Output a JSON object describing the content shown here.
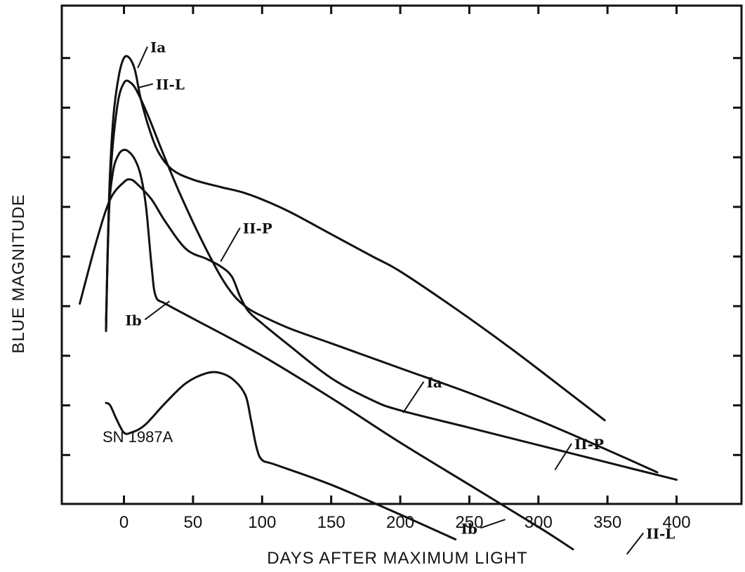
{
  "chart_data": {
    "type": "line",
    "title": "",
    "xlabel": "DAYS AFTER MAXIMUM LIGHT",
    "ylabel": "BLUE MAGNITUDE",
    "xlim": [
      -45,
      447
    ],
    "ylim": [
      0,
      10
    ],
    "x_ticks": [
      0,
      50,
      100,
      150,
      200,
      250,
      300,
      350,
      400
    ],
    "x_tick_labels": [
      "0",
      "50",
      "100",
      "150",
      "200",
      "250",
      "300",
      "350",
      "400"
    ],
    "y_ticks": [
      1,
      2,
      3,
      4,
      5,
      6,
      7,
      8,
      9
    ],
    "y_tick_labels_shown": false,
    "y_inverted": true,
    "grid": false,
    "annotation": "SN 1987A",
    "series": [
      {
        "name": "Ia",
        "color": "#111111",
        "x": [
          -13,
          -11,
          -8,
          -4,
          0,
          4,
          8,
          12,
          18,
          25,
          35,
          50,
          70,
          85,
          100,
          120,
          150,
          180,
          200,
          240,
          280,
          320,
          348
        ],
        "y": [
          6.5,
          4.0,
          2.3,
          1.4,
          1.0,
          1.0,
          1.25,
          1.8,
          2.4,
          2.9,
          3.25,
          3.45,
          3.6,
          3.7,
          3.85,
          4.1,
          4.55,
          5.0,
          5.3,
          6.05,
          6.85,
          7.7,
          8.3
        ]
      },
      {
        "name": "II-L",
        "color": "#111111",
        "x": [
          -13,
          -10,
          -5,
          0,
          5,
          10,
          18,
          28,
          40,
          55,
          70,
          80,
          90,
          100,
          120,
          150,
          200,
          250,
          300,
          350,
          386
        ],
        "y": [
          6.3,
          3.5,
          2.0,
          1.5,
          1.5,
          1.7,
          2.2,
          2.9,
          3.7,
          4.6,
          5.4,
          5.8,
          6.05,
          6.2,
          6.45,
          6.75,
          7.25,
          7.75,
          8.3,
          8.9,
          9.35
        ]
      },
      {
        "name": "II-P",
        "color": "#111111",
        "x": [
          -32,
          -20,
          -10,
          0,
          5,
          10,
          20,
          30,
          45,
          60,
          70,
          78,
          84,
          90,
          100,
          120,
          150,
          180,
          200,
          250,
          300,
          350,
          400
        ],
        "y": [
          5.95,
          4.7,
          3.85,
          3.5,
          3.45,
          3.55,
          3.85,
          4.3,
          4.85,
          5.05,
          5.2,
          5.4,
          5.8,
          6.1,
          6.35,
          6.8,
          7.45,
          7.9,
          8.1,
          8.45,
          8.8,
          9.15,
          9.5
        ]
      },
      {
        "name": "Ib",
        "color": "#111111",
        "x": [
          -13,
          -11,
          -8,
          -4,
          0,
          4,
          8,
          12,
          16,
          20,
          23,
          30,
          50,
          100,
          150,
          200,
          250,
          300,
          325
        ],
        "y": [
          6.5,
          4.2,
          3.3,
          2.95,
          2.85,
          2.9,
          3.05,
          3.35,
          4.0,
          5.2,
          5.8,
          5.95,
          6.25,
          7.0,
          7.85,
          8.75,
          9.6,
          10.45,
          10.9
        ]
      },
      {
        "name": "SN 1987A",
        "color": "#111111",
        "x": [
          -13,
          -10,
          -5,
          0,
          5,
          15,
          30,
          45,
          60,
          70,
          80,
          88,
          92,
          96,
          100,
          110,
          150,
          200,
          240
        ],
        "y": [
          7.95,
          8.0,
          8.3,
          8.55,
          8.55,
          8.4,
          7.95,
          7.55,
          7.35,
          7.35,
          7.5,
          7.8,
          8.3,
          8.85,
          9.1,
          9.2,
          9.6,
          10.2,
          10.7
        ]
      }
    ],
    "curve_labels": [
      {
        "text": "Ia",
        "x": 18,
        "y": 0.8,
        "lead_from_x": 10,
        "lead_from_y": 1.2
      },
      {
        "text": "II-L",
        "x": 22,
        "y": 1.55,
        "lead_from_x": 10,
        "lead_from_y": 1.6
      },
      {
        "text": "II-P",
        "x": 85,
        "y": 4.45,
        "lead_from_x": 70,
        "lead_from_y": 5.1
      },
      {
        "text": "Ib",
        "x": 5,
        "y": 6.3,
        "lead_from_x": 33,
        "lead_from_y": 5.9
      },
      {
        "text": "Ia",
        "x": 218,
        "y": 7.55,
        "lead_from_x": 202,
        "lead_from_y": 8.15
      },
      {
        "text": "II-P",
        "x": 325,
        "y": 8.8,
        "lead_from_x": 312,
        "lead_from_y": 9.3
      },
      {
        "text": "Ib",
        "x": 248,
        "y": 10.5,
        "lead_from_x": 276,
        "lead_from_y": 10.3
      },
      {
        "text": "II-L",
        "x": 377,
        "y": 10.6,
        "lead_from_x": 364,
        "lead_from_y": 11.0
      }
    ]
  }
}
